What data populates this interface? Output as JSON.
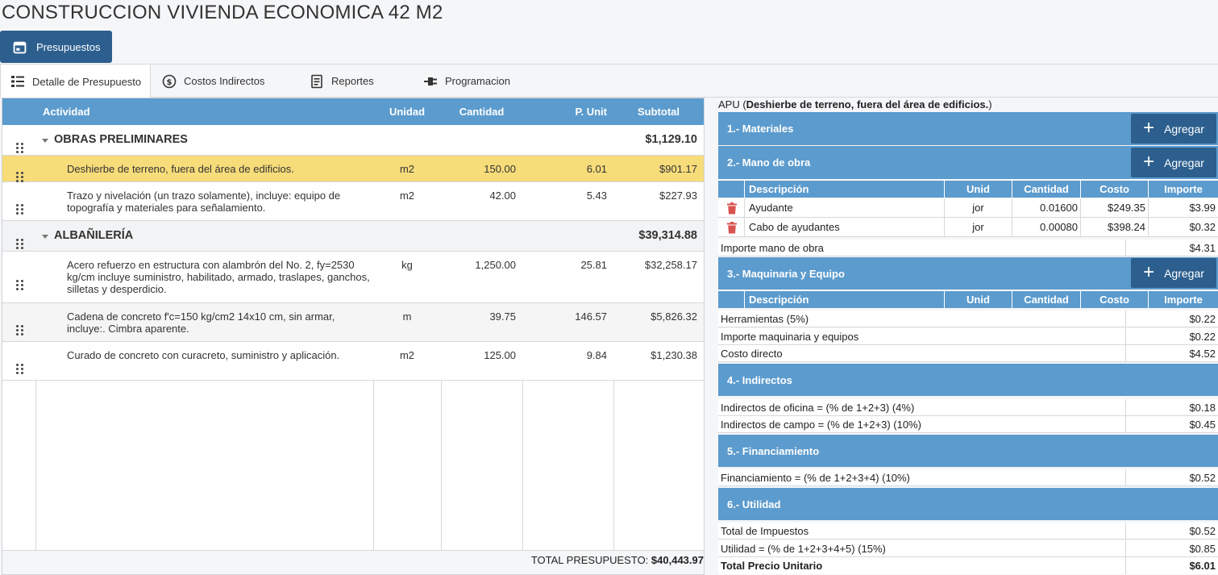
{
  "page": {
    "title": "CONSTRUCCION VIVIENDA ECONOMICA 42 M2"
  },
  "toolbar": {
    "presupuestos_label": "Presupuestos"
  },
  "tabs": [
    {
      "label": "Detalle de Presupuesto",
      "icon": "list-icon",
      "active": true
    },
    {
      "label": "Costos Indirectos",
      "icon": "dollar-circle-icon",
      "active": false
    },
    {
      "label": "Reportes",
      "icon": "document-icon",
      "active": false
    },
    {
      "label": "Programacion",
      "icon": "plug-icon",
      "active": false
    }
  ],
  "budget_table": {
    "headers": {
      "actividad": "Actividad",
      "unidad": "Unidad",
      "cantidad": "Cantidad",
      "punit": "P. Unit",
      "subtotal": "Subtotal"
    },
    "groups": [
      {
        "name": "OBRAS PRELIMINARES",
        "subtotal": "$1,129.10",
        "items": [
          {
            "descripcion": "Deshierbe de terreno, fuera del área de edificios.",
            "unidad": "m2",
            "cantidad": "150.00",
            "punit": "6.01",
            "subtotal": "$901.17",
            "selected": true
          },
          {
            "descripcion": "Trazo y nivelación (un trazo solamente), incluye: equipo de topografía y materiales para señalamiento.",
            "unidad": "m2",
            "cantidad": "42.00",
            "punit": "5.43",
            "subtotal": "$227.93"
          }
        ]
      },
      {
        "name": "ALBAÑILERÍA",
        "subtotal": "$39,314.88",
        "items": [
          {
            "descripcion": "Acero refuerzo en estructura con alambrón del No. 2, fy=2530 kg/cm incluye suministro, habilitado, armado, traslapes, ganchos, silletas y desperdicio.",
            "unidad": "kg",
            "cantidad": "1,250.00",
            "punit": "25.81",
            "subtotal": "$32,258.17"
          },
          {
            "descripcion": "Cadena de concreto f'c=150 kg/cm2 14x10 cm, sin armar, incluye:. Cimbra aparente.",
            "unidad": "m",
            "cantidad": "39.75",
            "punit": "146.57",
            "subtotal": "$5,826.32"
          },
          {
            "descripcion": "Curado de concreto con curacreto, suministro y aplicación.",
            "unidad": "m2",
            "cantidad": "125.00",
            "punit": "9.84",
            "subtotal": "$1,230.38"
          }
        ]
      }
    ],
    "total_label": "TOTAL PRESUPUESTO:",
    "total_value": "$40,443.97"
  },
  "apu": {
    "title_prefix": "APU (",
    "title_activity": "Deshierbe de terreno, fuera del área de edificios.",
    "title_suffix": ")",
    "add_label": "Agregar",
    "sections": {
      "materiales": "1.- Materiales",
      "mano_obra": "2.- Mano de obra",
      "maquinaria": "3.- Maquinaria y Equipo",
      "indirectos": "4.- Indirectos",
      "financiamiento": "5.- Financiamiento",
      "utilidad": "6.- Utilidad"
    },
    "sub_headers": {
      "descripcion": "Descripción",
      "unid": "Unid",
      "cantidad": "Cantidad",
      "costo": "Costo",
      "importe": "Importe"
    },
    "mano_obra_rows": [
      {
        "descripcion": "Ayudante",
        "unid": "jor",
        "cantidad": "0.01600",
        "costo": "$249.35",
        "importe": "$3.99"
      },
      {
        "descripcion": "Cabo de ayudantes",
        "unid": "jor",
        "cantidad": "0.00080",
        "costo": "$398.24",
        "importe": "$0.32"
      }
    ],
    "importe_mano_obra": {
      "label": "Importe mano de obra",
      "value": "$4.31"
    },
    "herramientas": {
      "label": "Herramientas (5%)",
      "value": "$0.22"
    },
    "importe_maquinaria": {
      "label": "Importe maquinaria y equipos",
      "value": "$0.22"
    },
    "costo_directo": {
      "label": "Costo directo",
      "value": "$4.52"
    },
    "indirectos_oficina": {
      "label": "Indirectos de oficina = (% de 1+2+3) (4%)",
      "value": "$0.18"
    },
    "indirectos_campo": {
      "label": "Indirectos de campo = (% de 1+2+3) (10%)",
      "value": "$0.45"
    },
    "financiamiento_row": {
      "label": "Financiamiento = (% de 1+2+3+4) (10%)",
      "value": "$0.52"
    },
    "total_impuestos": {
      "label": "Total de Impuestos",
      "value": "$0.52"
    },
    "utilidad_row": {
      "label": "Utilidad = (% de 1+2+3+4+5) (15%)",
      "value": "$0.85"
    },
    "total_precio": {
      "label": "Total Precio Unitario",
      "value": "$6.01"
    }
  },
  "colors": {
    "header_blue": "#5c9bcd",
    "button_blue": "#2c5f8e",
    "selected_row": "#f7dc7a",
    "trash_red": "#d9534f"
  }
}
